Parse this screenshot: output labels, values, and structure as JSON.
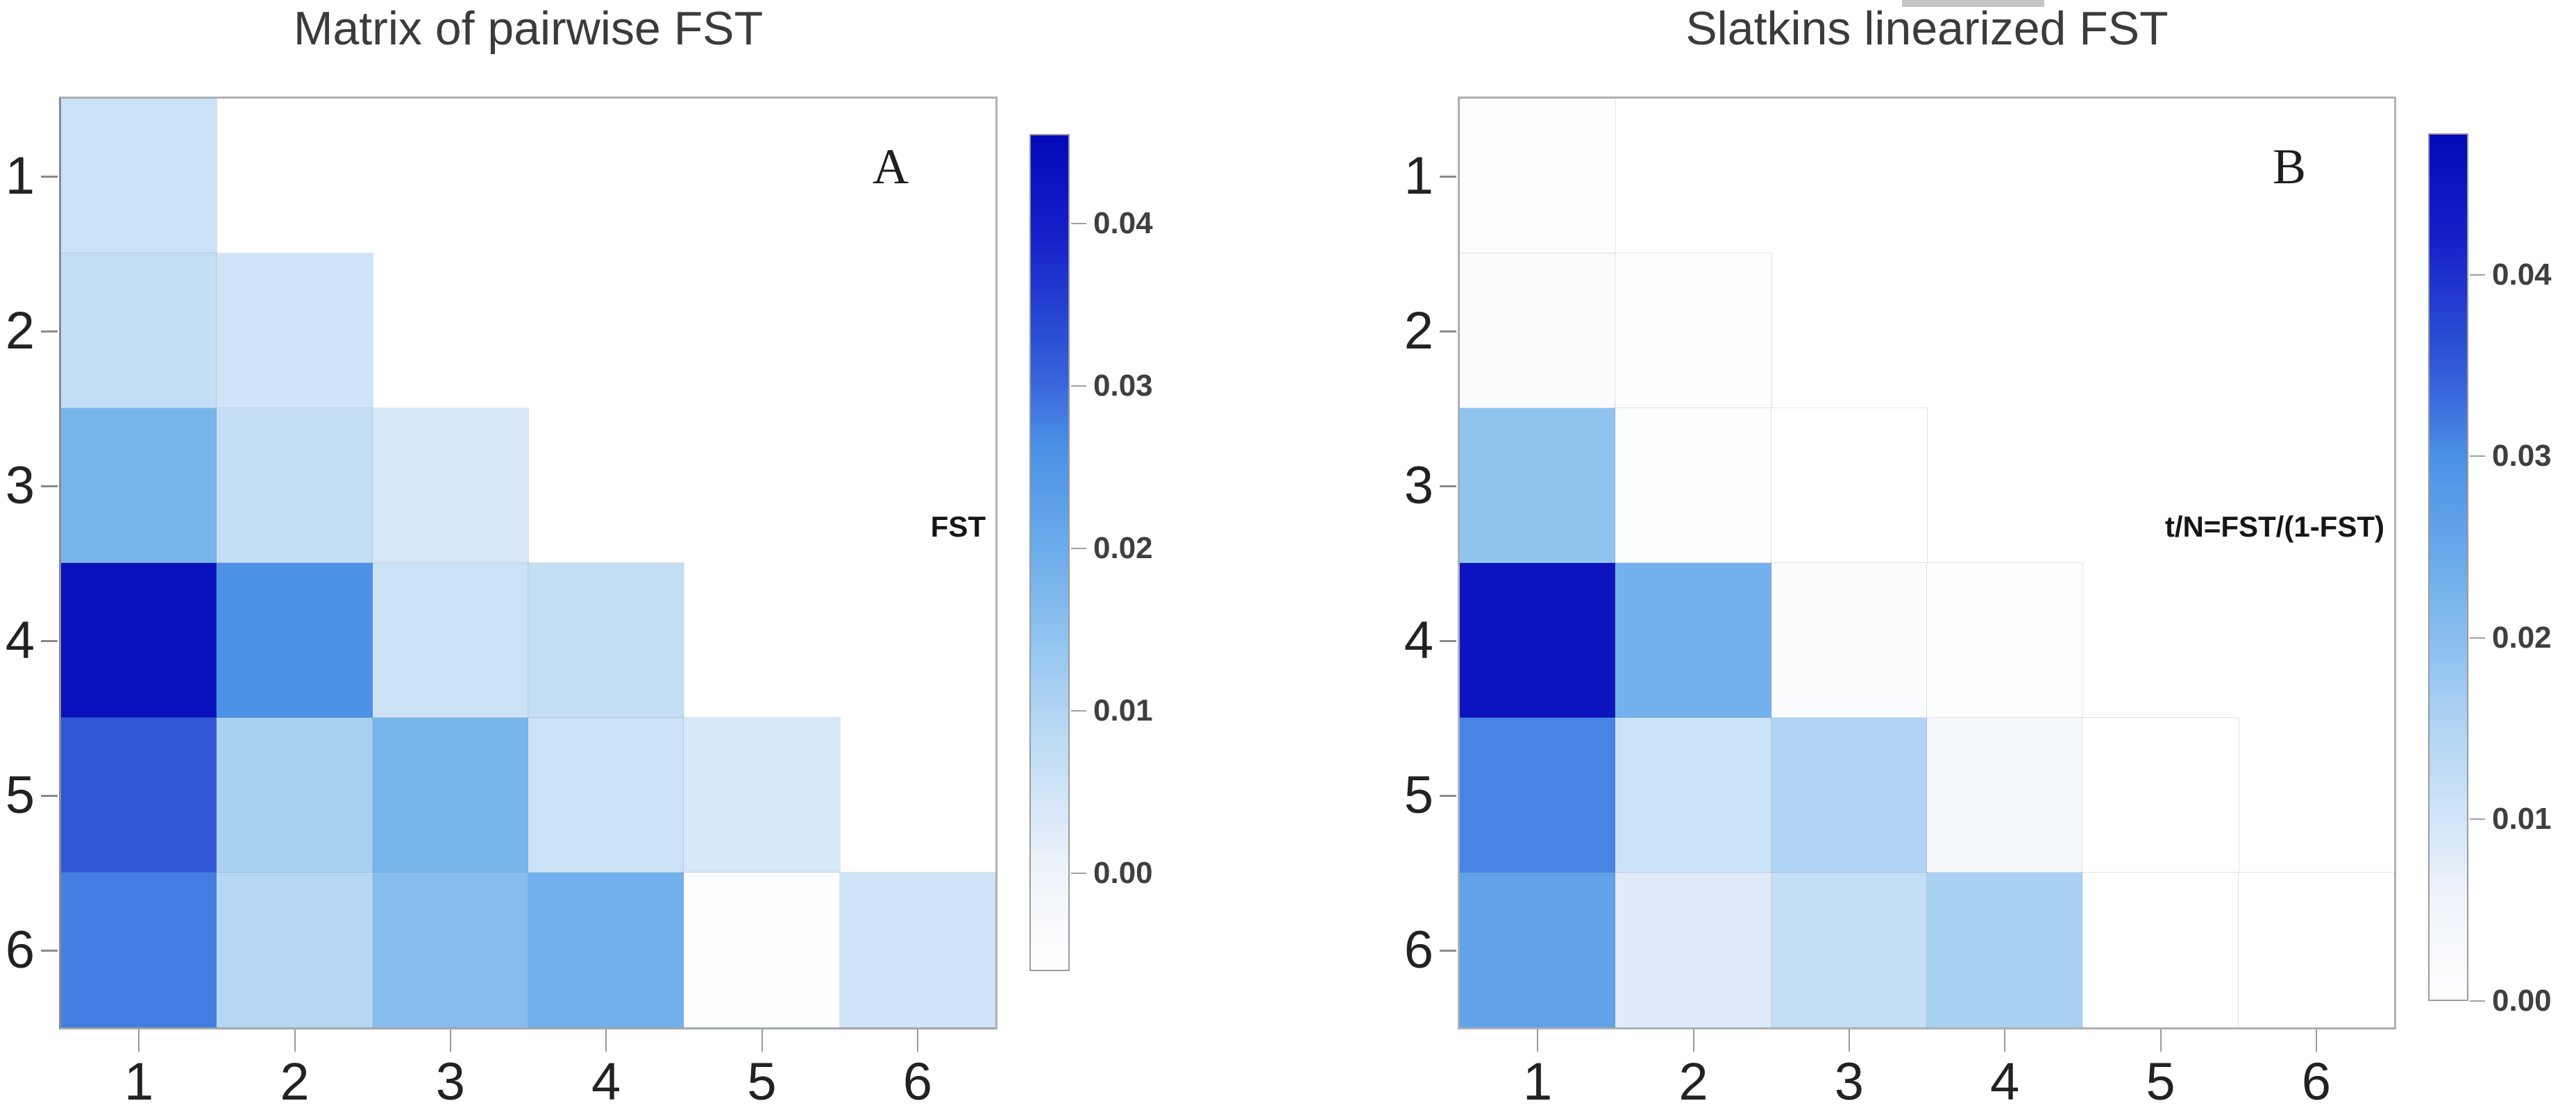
{
  "chart_data": [
    {
      "type": "heatmap",
      "panel_label": "A",
      "title": "Matrix of pairwise FST",
      "legend_label": "FST",
      "x_ticklabels": [
        "1",
        "2",
        "3",
        "4",
        "5",
        "6"
      ],
      "y_ticklabels": [
        "1",
        "2",
        "3",
        "4",
        "5",
        "6"
      ],
      "values": [
        [
          0.006,
          null,
          null,
          null,
          null,
          null
        ],
        [
          0.007,
          0.005,
          null,
          null,
          null,
          null
        ],
        [
          0.018,
          0.007,
          0.004,
          null,
          null,
          null
        ],
        [
          0.043,
          0.026,
          0.006,
          0.007,
          null,
          null
        ],
        [
          0.032,
          0.011,
          0.018,
          0.006,
          0.004,
          null
        ],
        [
          0.028,
          0.009,
          0.016,
          0.019,
          -0.005,
          0.005
        ]
      ],
      "colorbar": {
        "vmin": -0.006,
        "vmax": 0.0455,
        "tick_values": [
          0.04,
          0.03,
          0.02,
          0.01,
          0.0
        ],
        "tick_labels": [
          "0.04",
          "0.03",
          "0.02",
          "0.01",
          "0.00"
        ]
      }
    },
    {
      "type": "heatmap",
      "panel_label": "B",
      "title": "Slatkins linearized FST",
      "legend_label": "t/N=FST/(1-FST)",
      "x_ticklabels": [
        "1",
        "2",
        "3",
        "4",
        "5",
        "6"
      ],
      "y_ticklabels": [
        "1",
        "2",
        "3",
        "4",
        "5",
        "6"
      ],
      "values": [
        [
          0.001,
          null,
          null,
          null,
          null,
          null
        ],
        [
          0.002,
          0.001,
          null,
          null,
          null,
          null
        ],
        [
          0.019,
          0.001,
          0.0,
          null,
          null,
          null
        ],
        [
          0.045,
          0.023,
          0.002,
          0.001,
          null,
          null
        ],
        [
          0.031,
          0.011,
          0.015,
          0.003,
          0.0,
          null
        ],
        [
          0.026,
          0.008,
          0.012,
          0.016,
          0.0,
          0.0
        ]
      ],
      "colorbar": {
        "vmin": 0.0,
        "vmax": 0.0478,
        "tick_values": [
          0.04,
          0.03,
          0.02,
          0.01,
          0.0
        ],
        "tick_labels": [
          "0.04",
          "0.03",
          "0.02",
          "0.01",
          "0.00"
        ]
      }
    }
  ],
  "colormap": {
    "stops": [
      {
        "f": 0.0,
        "color": "#ffffff"
      },
      {
        "f": 0.12,
        "color": "#eef3fa"
      },
      {
        "f": 0.31,
        "color": "#b1d5f3"
      },
      {
        "f": 0.5,
        "color": "#6cadeb"
      },
      {
        "f": 0.63,
        "color": "#4a90e6"
      },
      {
        "f": 0.7,
        "color": "#3a67dd"
      },
      {
        "f": 0.76,
        "color": "#2b4ed4"
      },
      {
        "f": 0.88,
        "color": "#1520c9"
      },
      {
        "f": 1.0,
        "color": "#0309b8"
      }
    ]
  }
}
